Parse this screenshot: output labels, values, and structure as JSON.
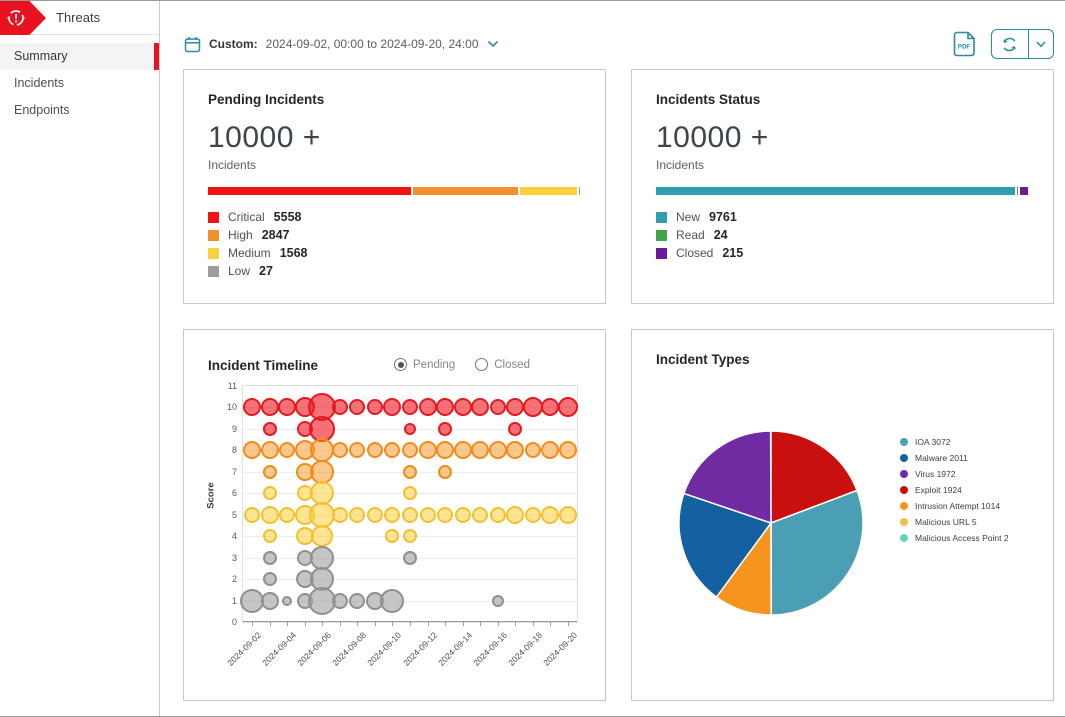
{
  "header": {
    "app_name": "Threats"
  },
  "sidebar": {
    "items": [
      {
        "label": "Summary"
      },
      {
        "label": "Incidents"
      },
      {
        "label": "Endpoints"
      }
    ],
    "active_index": 0
  },
  "toolbar": {
    "date_prefix": "Custom:",
    "date_range": "2024-09-02, 00:00 to 2024-09-20, 24:00",
    "pdf_label": "PDF"
  },
  "cards": {
    "pending": {
      "title": "Pending Incidents",
      "unit": "Incidents"
    },
    "status": {
      "title": "Incidents Status",
      "unit": "Incidents"
    },
    "timeline": {
      "title": "Incident Timeline",
      "radios": [
        {
          "label": "Pending",
          "selected": true
        },
        {
          "label": "Closed",
          "selected": false
        }
      ]
    },
    "types": {
      "title": "Incident Types"
    }
  },
  "chart_data": [
    {
      "id": "pending_severity",
      "type": "bar",
      "title": "Pending Incidents",
      "total_label": "10000 +",
      "series": [
        {
          "name": "Critical",
          "value": 5558,
          "color": "#f21414"
        },
        {
          "name": "High",
          "value": 2847,
          "color": "#f0912c"
        },
        {
          "name": "Medium",
          "value": 1568,
          "color": "#fccf3c"
        },
        {
          "name": "Low",
          "value": 27,
          "color": "#9e9e9e"
        }
      ]
    },
    {
      "id": "incident_status",
      "type": "bar",
      "title": "Incidents Status",
      "total_label": "10000 +",
      "series": [
        {
          "name": "New",
          "value": 9761,
          "color": "#2f9fae"
        },
        {
          "name": "Read",
          "value": 24,
          "color": "#43a447"
        },
        {
          "name": "Closed",
          "value": 215,
          "color": "#6a1b9a"
        }
      ]
    },
    {
      "id": "incident_timeline",
      "type": "scatter",
      "title": "Incident Timeline",
      "ylabel": "Score",
      "ylim": [
        0,
        11
      ],
      "x": [
        "2024-09-02",
        "2024-09-03",
        "2024-09-04",
        "2024-09-05",
        "2024-09-06",
        "2024-09-07",
        "2024-09-08",
        "2024-09-09",
        "2024-09-10",
        "2024-09-11",
        "2024-09-12",
        "2024-09-13",
        "2024-09-14",
        "2024-09-15",
        "2024-09-16",
        "2024-09-17",
        "2024-09-18",
        "2024-09-19",
        "2024-09-20"
      ],
      "xtick_label_every": 2,
      "series": [
        {
          "name": "critical",
          "fill": "rgba(237,28,36,0.62)",
          "stroke": "#e31a21",
          "points": [
            [
              0,
              10,
              9
            ],
            [
              1,
              10,
              9
            ],
            [
              2,
              10,
              9
            ],
            [
              3,
              10,
              10
            ],
            [
              4,
              10,
              14
            ],
            [
              5,
              10,
              8
            ],
            [
              6,
              10,
              8
            ],
            [
              7,
              10,
              8
            ],
            [
              8,
              10,
              9
            ],
            [
              9,
              10,
              8
            ],
            [
              10,
              10,
              9
            ],
            [
              11,
              10,
              9
            ],
            [
              12,
              10,
              9
            ],
            [
              13,
              10,
              9
            ],
            [
              14,
              10,
              8
            ],
            [
              15,
              10,
              9
            ],
            [
              16,
              10,
              10
            ],
            [
              17,
              10,
              9
            ],
            [
              18,
              10,
              10
            ],
            [
              1,
              9,
              7
            ],
            [
              3,
              9,
              8
            ],
            [
              4,
              9,
              13
            ],
            [
              9,
              9,
              6
            ],
            [
              11,
              9,
              7
            ],
            [
              15,
              9,
              7
            ]
          ]
        },
        {
          "name": "high",
          "fill": "rgba(247,148,30,0.5)",
          "stroke": "#f08c1c",
          "points": [
            [
              0,
              8,
              9
            ],
            [
              1,
              8,
              9
            ],
            [
              2,
              8,
              8
            ],
            [
              3,
              8,
              10
            ],
            [
              4,
              8,
              12
            ],
            [
              5,
              8,
              8
            ],
            [
              6,
              8,
              8
            ],
            [
              7,
              8,
              8
            ],
            [
              8,
              8,
              8
            ],
            [
              9,
              8,
              8
            ],
            [
              10,
              8,
              9
            ],
            [
              11,
              8,
              9
            ],
            [
              12,
              8,
              9
            ],
            [
              13,
              8,
              9
            ],
            [
              14,
              8,
              9
            ],
            [
              15,
              8,
              9
            ],
            [
              16,
              8,
              8
            ],
            [
              17,
              8,
              9
            ],
            [
              18,
              8,
              9
            ],
            [
              1,
              7,
              7
            ],
            [
              3,
              7,
              9
            ],
            [
              4,
              7,
              12
            ],
            [
              9,
              7,
              7
            ],
            [
              11,
              7,
              7
            ]
          ]
        },
        {
          "name": "medium",
          "fill": "rgba(252,207,60,0.55)",
          "stroke": "#f2c12f",
          "points": [
            [
              1,
              6,
              7
            ],
            [
              3,
              6,
              8
            ],
            [
              4,
              6,
              12
            ],
            [
              9,
              6,
              7
            ],
            [
              0,
              5,
              8
            ],
            [
              1,
              5,
              9
            ],
            [
              2,
              5,
              8
            ],
            [
              3,
              5,
              10
            ],
            [
              4,
              5,
              13
            ],
            [
              5,
              5,
              8
            ],
            [
              6,
              5,
              8
            ],
            [
              7,
              5,
              8
            ],
            [
              8,
              5,
              8
            ],
            [
              9,
              5,
              8
            ],
            [
              10,
              5,
              8
            ],
            [
              11,
              5,
              8
            ],
            [
              12,
              5,
              8
            ],
            [
              13,
              5,
              8
            ],
            [
              14,
              5,
              8
            ],
            [
              15,
              5,
              9
            ],
            [
              16,
              5,
              8
            ],
            [
              17,
              5,
              9
            ],
            [
              18,
              5,
              9
            ],
            [
              1,
              4,
              7
            ],
            [
              3,
              4,
              9
            ],
            [
              4,
              4,
              11
            ],
            [
              8,
              4,
              7
            ],
            [
              9,
              4,
              7
            ]
          ]
        },
        {
          "name": "low",
          "fill": "rgba(158,158,158,0.6)",
          "stroke": "#8f8f8f",
          "points": [
            [
              1,
              3,
              7
            ],
            [
              3,
              3,
              8
            ],
            [
              4,
              3,
              12
            ],
            [
              9,
              3,
              7
            ],
            [
              1,
              2,
              7
            ],
            [
              3,
              2,
              9
            ],
            [
              4,
              2,
              12
            ],
            [
              0,
              1,
              12
            ],
            [
              1,
              1,
              9
            ],
            [
              2,
              1,
              5
            ],
            [
              3,
              1,
              8
            ],
            [
              4,
              1,
              14
            ],
            [
              5,
              1,
              8
            ],
            [
              6,
              1,
              8
            ],
            [
              7,
              1,
              9
            ],
            [
              8,
              1,
              12
            ],
            [
              14,
              1,
              6
            ]
          ]
        }
      ]
    },
    {
      "id": "incident_types",
      "type": "pie",
      "title": "Incident Types",
      "legend_position": "right",
      "slices": [
        {
          "label": "IOA",
          "value": 3072,
          "color": "#4a9fb5"
        },
        {
          "label": "Malware",
          "value": 2011,
          "color": "#1560a0"
        },
        {
          "label": "Virus",
          "value": 1972,
          "color": "#702ba2"
        },
        {
          "label": "Exploit",
          "value": 1924,
          "color": "#c9100f"
        },
        {
          "label": "Intrusion Attempt",
          "value": 1014,
          "color": "#f7941e"
        },
        {
          "label": "Malicious URL",
          "value": 5,
          "color": "#eec050"
        },
        {
          "label": "Malicious Access Point",
          "value": 2,
          "color": "#5cd6b4"
        }
      ],
      "draw_order_clockwise_from_top": [
        3,
        0,
        4,
        1,
        2,
        5,
        6
      ]
    }
  ]
}
